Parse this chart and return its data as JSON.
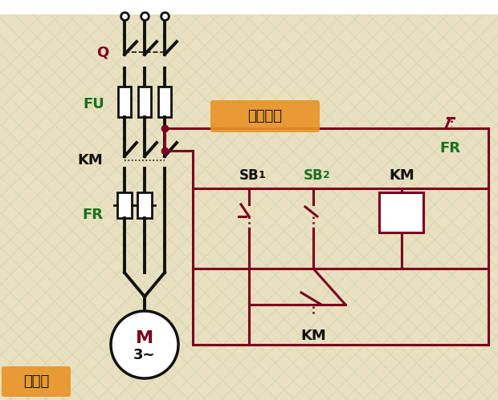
{
  "bg_color": "#e8e0c0",
  "grid_color": "#b8c890",
  "dark_red": "#7B0020",
  "green": "#1a7020",
  "black": "#111111",
  "orange": "#e89428",
  "white": "#ffffff",
  "label_Q": "Q",
  "label_FU": "FU",
  "label_KM": "KM",
  "label_FR": "FR",
  "label_M": "M",
  "label_3": "3~",
  "label_SB1": "SB",
  "label_SB1sub": "1",
  "label_SB2": "SB",
  "label_SB2sub": "2",
  "label_KM_coil": "KM",
  "label_KM_self": "KM",
  "label_FR_ctrl": "FR",
  "label_ctrl": "控制电路",
  "label_main": "主电路"
}
